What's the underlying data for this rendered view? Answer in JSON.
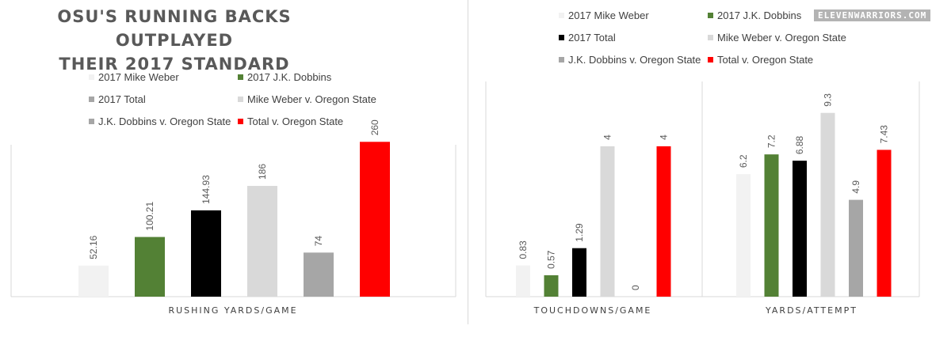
{
  "title": "OSU'S RUNNING BACKS OUTPLAYED THEIR 2017 STANDARD",
  "brand": "ELEVENWARRIORS.COM",
  "series_names": [
    "2017 Mike Weber",
    "2017 J.K. Dobbins",
    "2017 Total",
    "Mike Weber v. Oregon State",
    "J.K. Dobbins v. Oregon State",
    "Total v. Oregon State"
  ],
  "colors": {
    "left": [
      "#f2f2f2",
      "#538135",
      "#000000",
      "#d9d9d9",
      "#a6a6a6",
      "#ff0000"
    ],
    "right": [
      "#f2f2f2",
      "#538135",
      "#000000",
      "#d9d9d9",
      "#a6a6a6",
      "#ff0000"
    ],
    "left_legend": [
      "#f2f2f2",
      "#538135",
      "#a6a6a6",
      "#d9d9d9",
      "#a6a6a6",
      "#ff0000"
    ],
    "right_legend": [
      "#f2f2f2",
      "#538135",
      "#000000",
      "#d9d9d9",
      "#a6a6a6",
      "#ff0000"
    ]
  },
  "left_legend": [
    "2017 Mike Weber",
    "2017 J.K. Dobbins",
    "2017 Total",
    "Mike Weber v. Oregon State",
    "J.K. Dobbins v. Oregon State",
    "Total v. Oregon State"
  ],
  "right_legend": [
    "2017 Mike Weber",
    "2017 J.K. Dobbins",
    "2017 Total",
    "Mike Weber v. Oregon State",
    "J.K. Dobbins v. Oregon State",
    "Total v. Oregon State"
  ],
  "chart_data": [
    {
      "type": "bar",
      "categories": [
        "RUSHING YARDS/GAME"
      ],
      "series": [
        {
          "name": "2017 Mike Weber",
          "values": [
            52.16
          ]
        },
        {
          "name": "2017 J.K. Dobbins",
          "values": [
            100.21
          ]
        },
        {
          "name": "2017 Total",
          "values": [
            144.93
          ]
        },
        {
          "name": "Mike Weber v. Oregon State",
          "values": [
            186
          ]
        },
        {
          "name": "J.K. Dobbins v. Oregon State",
          "values": [
            74
          ]
        },
        {
          "name": "Total v. Oregon State",
          "values": [
            260
          ]
        }
      ],
      "labels": [
        "52.16",
        "100.21",
        "144.93",
        "186",
        "74",
        "260"
      ],
      "ylim": [
        0,
        275
      ],
      "legend": "top"
    },
    {
      "type": "bar",
      "categories": [
        "TOUCHDOWNS/GAME"
      ],
      "series": [
        {
          "name": "2017 Mike Weber",
          "values": [
            0.83
          ]
        },
        {
          "name": "2017 J.K. Dobbins",
          "values": [
            0.57
          ]
        },
        {
          "name": "2017 Total",
          "values": [
            1.29
          ]
        },
        {
          "name": "Mike Weber v. Oregon State",
          "values": [
            4
          ]
        },
        {
          "name": "J.K. Dobbins v. Oregon State",
          "values": [
            0
          ]
        },
        {
          "name": "Total v. Oregon State",
          "values": [
            4
          ]
        }
      ],
      "labels": [
        "0.83",
        "0.57",
        "1.29",
        "4",
        "0",
        "4"
      ],
      "ylim": [
        0,
        5.66
      ],
      "legend": "top"
    },
    {
      "type": "bar",
      "categories": [
        "YARDS/ATTEMPT"
      ],
      "series": [
        {
          "name": "2017 Mike Weber",
          "values": [
            6.2
          ]
        },
        {
          "name": "2017 J.K. Dobbins",
          "values": [
            7.2
          ]
        },
        {
          "name": "2017 Total",
          "values": [
            6.88
          ]
        },
        {
          "name": "Mike Weber v. Oregon State",
          "values": [
            9.3
          ]
        },
        {
          "name": "J.K. Dobbins v. Oregon State",
          "values": [
            4.9
          ]
        },
        {
          "name": "Total v. Oregon State",
          "values": [
            7.43
          ]
        }
      ],
      "labels": [
        "6.2",
        "7.2",
        "6.88",
        "9.3",
        "4.9",
        "7.43"
      ],
      "ylim": [
        0,
        10.77
      ],
      "legend": "top"
    }
  ]
}
